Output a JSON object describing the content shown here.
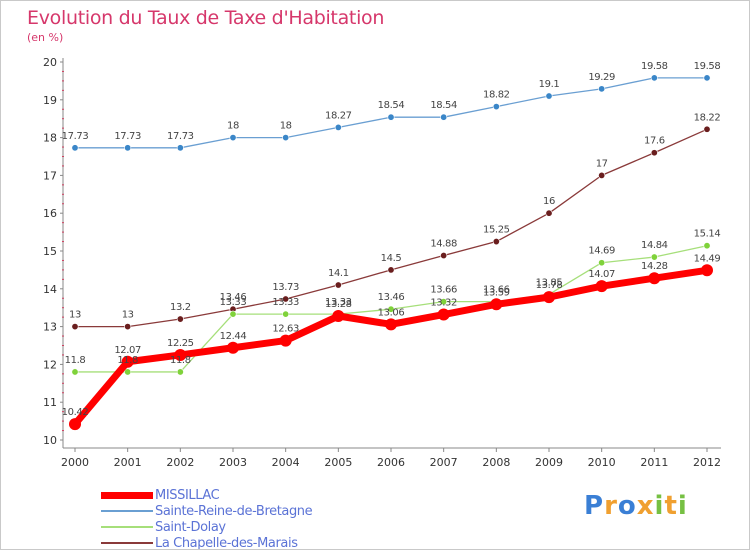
{
  "title": "Evolution du Taux de Taxe d'Habitation",
  "unit": "(en %)",
  "logo": {
    "letters": [
      "P",
      "r",
      "o",
      "x",
      "i",
      "t",
      "i"
    ],
    "colors": [
      "#3a7fd5",
      "#f0a030",
      "#3a7fd5",
      "#f0a030",
      "#76c043",
      "#f0a030",
      "#76c043"
    ]
  },
  "chart_data": {
    "type": "line",
    "x": [
      "2000",
      "2001",
      "2002",
      "2003",
      "2004",
      "2005",
      "2006",
      "2007",
      "2008",
      "2009",
      "2010",
      "2011",
      "2012"
    ],
    "ylim": [
      10,
      20
    ],
    "yticks": [
      10,
      11,
      12,
      13,
      14,
      15,
      16,
      17,
      18,
      19,
      20
    ],
    "grid": false,
    "legend_position": "bottom-left",
    "series": [
      {
        "name": "MISSILLAC",
        "color": "#ff0000",
        "marker": "#ff0000",
        "width": 7,
        "values": [
          10.42,
          12.07,
          12.25,
          12.44,
          12.63,
          13.28,
          13.06,
          13.32,
          13.59,
          13.78,
          14.07,
          14.28,
          14.49
        ],
        "labels": [
          "10.42",
          "12.07",
          "12.25",
          "12.44",
          "12.63",
          "13.28",
          "13.06",
          "13.32",
          "13.59",
          "13.78",
          "14.07",
          "14.28",
          "14.49"
        ]
      },
      {
        "name": "Sainte-Reine-de-Bretagne",
        "color": "#6a9fd2",
        "marker": "#3a86c8",
        "width": 1.3,
        "values": [
          17.73,
          17.73,
          17.73,
          18,
          18,
          18.27,
          18.54,
          18.54,
          18.82,
          19.1,
          19.29,
          19.58,
          19.58
        ],
        "labels": [
          "17.73",
          "17.73",
          "17.73",
          "18",
          "18",
          "18.27",
          "18.54",
          "18.54",
          "18.82",
          "19.1",
          "19.29",
          "19.58",
          "19.58"
        ]
      },
      {
        "name": "Saint-Dolay",
        "color": "#a6df7a",
        "marker": "#7fd23a",
        "width": 1.3,
        "values": [
          11.8,
          11.8,
          11.8,
          13.33,
          13.33,
          13.33,
          13.46,
          13.66,
          13.66,
          13.85,
          14.69,
          14.84,
          15.14
        ],
        "labels": [
          "11.8",
          "11.8",
          "11.8",
          "13.33",
          "13.33",
          "13.33",
          "13.46",
          "13.66",
          "13.66",
          "13.85",
          "14.69",
          "14.84",
          "15.14"
        ]
      },
      {
        "name": "La Chapelle-des-Marais",
        "color": "#8a3a3a",
        "marker": "#6a1e1e",
        "width": 1.3,
        "values": [
          13,
          13,
          13.2,
          13.46,
          13.73,
          14.1,
          14.5,
          14.88,
          15.25,
          16,
          17,
          17.6,
          18.22
        ],
        "labels": [
          "13",
          "13",
          "13.2",
          "13.46",
          "13.73",
          "14.1",
          "14.5",
          "14.88",
          "15.25",
          "16",
          "17",
          "17.6",
          "18.22"
        ]
      }
    ]
  }
}
